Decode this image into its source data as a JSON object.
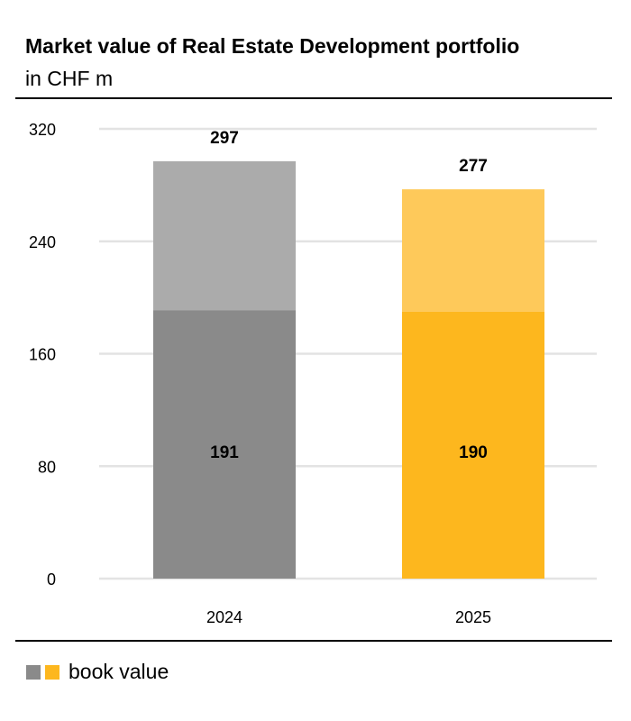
{
  "header": {
    "title": "Market value of Real Estate Development portfolio",
    "subtitle": "in CHF m"
  },
  "chart_data": {
    "type": "bar",
    "stacked": true,
    "title": "Market value of Real Estate Development portfolio",
    "subtitle": "in CHF m",
    "categories": [
      "2024",
      "2025"
    ],
    "book_values": [
      191,
      190
    ],
    "market_values": [
      297,
      277
    ],
    "yticks": [
      0,
      80,
      160,
      240,
      320
    ],
    "ylim": [
      0,
      320
    ],
    "grid": true,
    "colors": {
      "2024": {
        "book": "#8a8a8a",
        "market": "#ababab"
      },
      "2025": {
        "book": "#fdb71e",
        "market": "#fec95a"
      }
    },
    "legend": {
      "position": "bottom-left",
      "label": "book value"
    }
  }
}
